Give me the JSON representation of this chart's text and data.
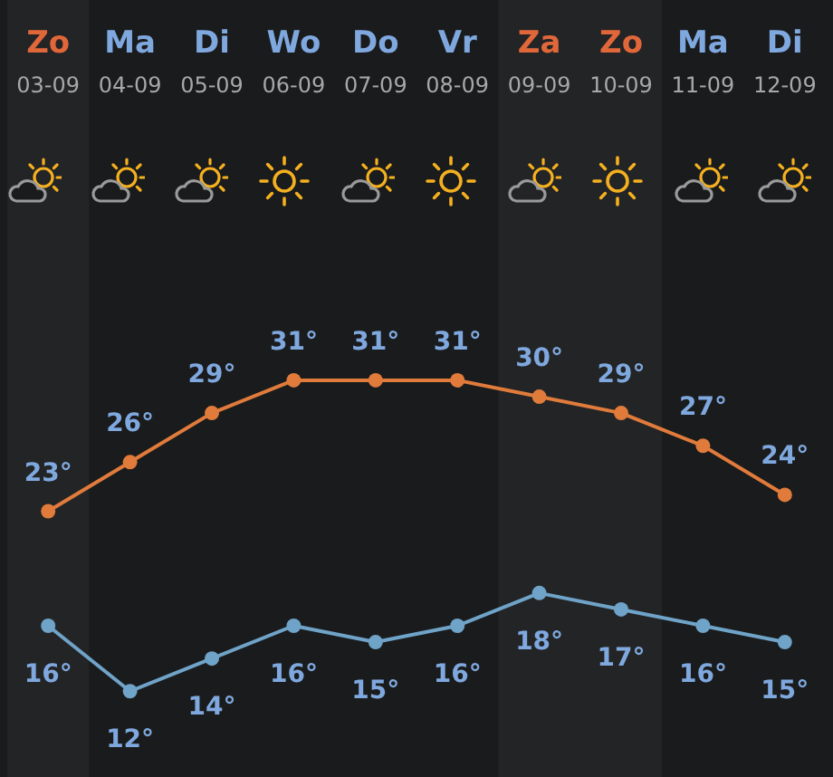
{
  "chart_data": {
    "type": "line",
    "categories": [
      "Zo 03-09",
      "Ma 04-09",
      "Di 05-09",
      "Wo 06-09",
      "Do 07-09",
      "Vr 08-09",
      "Za 09-09",
      "Zo 10-09",
      "Ma 11-09",
      "Di 12-09"
    ],
    "series": [
      {
        "color": "#e07b3c",
        "values": [
          23,
          26,
          29,
          31,
          31,
          31,
          30,
          29,
          27,
          24
        ],
        "value_labels": [
          "23°",
          "26°",
          "29°",
          "31°",
          "31°",
          "31°",
          "30°",
          "29°",
          "27°",
          "24°"
        ]
      },
      {
        "color": "#6fa3c8",
        "values": [
          16,
          12,
          14,
          16,
          15,
          16,
          18,
          17,
          16,
          15
        ],
        "value_labels": [
          "16°",
          "12°",
          "14°",
          "16°",
          "15°",
          "16°",
          "18°",
          "17°",
          "16°",
          "15°"
        ]
      }
    ],
    "bands": [
      {
        "axis": "x",
        "from": "Zo 03-09",
        "to": "Zo 03-09",
        "color": "#232425"
      },
      {
        "axis": "x",
        "from": "Za 09-09",
        "to": "Zo 10-09",
        "color": "#232425"
      }
    ],
    "marker": "circle",
    "line_style": "solid",
    "legend": false
  }
}
